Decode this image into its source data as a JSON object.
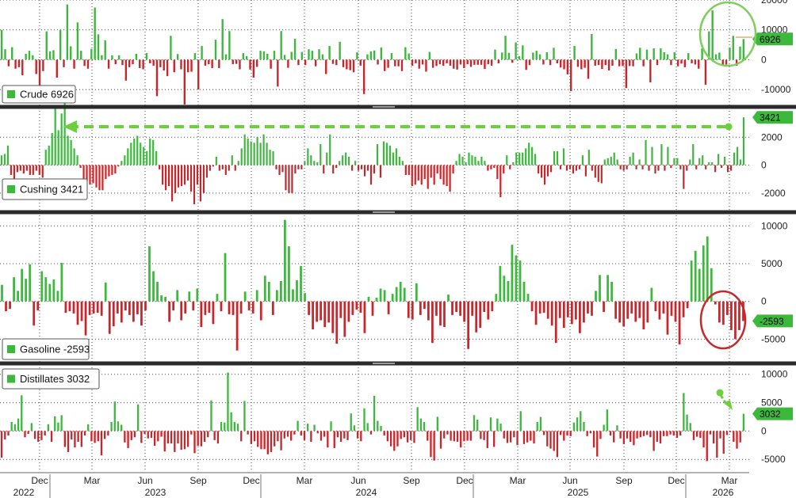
{
  "chart_data": [
    {
      "type": "bar",
      "legend": {
        "label": "Crude 6926",
        "color": "#3cb83c"
      },
      "last_value_label": "6926",
      "ylim": [
        -15000,
        20000
      ],
      "yticks": [
        20000,
        10000,
        0,
        -10000
      ],
      "ytick_labels": [
        "20000",
        "10000",
        "0",
        "-10000"
      ],
      "highlight": {
        "shape": "ellipse",
        "color": "#7ccf5a",
        "target": "last-bars"
      },
      "values": [
        10000,
        3500,
        -2200,
        4200,
        -3000,
        -2500,
        -5200,
        2000,
        3000,
        1500,
        -4800,
        -10500,
        -3800,
        9500,
        2800,
        3200,
        -6000,
        10000,
        -2500,
        18500,
        4500,
        -3000,
        12500,
        3000,
        -2100,
        -3000,
        3600,
        17500,
        8500,
        1500,
        6500,
        -3000,
        1500,
        -1500,
        1500,
        -1800,
        -7000,
        -2500,
        -1500,
        2000,
        -2800,
        -3200,
        2200,
        -1200,
        -2000,
        -12200,
        -2500,
        -3600,
        -5500,
        8000,
        -4200,
        1900,
        -3200,
        -15000,
        -4200,
        -4000,
        2200,
        -10000,
        4600,
        -2000,
        -1500,
        -2800,
        6700,
        -2800,
        13600,
        1800,
        9600,
        -1500,
        -1400,
        -3200,
        2200,
        1200,
        -3300,
        -6000,
        -2400,
        3000,
        2800,
        2000,
        -3000,
        3000,
        -9000,
        9600,
        1600,
        -2700,
        2600,
        7000,
        -1800,
        2600,
        -1800,
        3500,
        3000,
        -2200,
        3500,
        1800,
        -4800,
        4600,
        -1400,
        -1800,
        6000,
        -2500,
        -3200,
        -3500,
        -4200,
        2500,
        -2000,
        -11500,
        1800,
        2800,
        3100,
        -1600,
        4100,
        -3800,
        -2700,
        2200,
        -2200,
        -2200,
        -3800,
        4200,
        2100,
        -2000,
        -1200,
        -3000,
        -1600,
        -4000,
        2600,
        -2700,
        -2100,
        -1500,
        -2000,
        -1200,
        -2000,
        -3000,
        -3300,
        -1600,
        -2800,
        -1500,
        -2400,
        -1700,
        -1700,
        -1700,
        -3100,
        -1500,
        -2000,
        3400,
        -1200,
        2400,
        8000,
        2300,
        -1000,
        5800,
        1200,
        4800,
        -3400,
        -1800,
        2400,
        3000,
        1800,
        -1600,
        2500,
        -1800,
        4000,
        -1200,
        -2600,
        -3200,
        -4900,
        -10500,
        4600,
        -2400,
        -3200,
        -2700,
        -6400,
        8600,
        -2000,
        -1800,
        -3100,
        -1800,
        -3600,
        -2000,
        3600,
        -2200,
        -2100,
        -9500,
        -2100,
        -2200,
        2100,
        4000,
        -2200,
        3400,
        -7600,
        3800,
        -1800,
        3800,
        2500,
        1800,
        -1800,
        2500,
        -2200,
        -1300,
        -2500,
        2200,
        -1200,
        -1600,
        -3000,
        3800,
        -8400,
        9500,
        16500,
        1800,
        2400,
        -2100,
        -1600,
        4000,
        8000,
        -2000,
        4400,
        6926
      ]
    },
    {
      "type": "bar",
      "legend": {
        "label": "Cushing 3421",
        "color": "#3cb83c"
      },
      "last_value_label": "3421",
      "ylim": [
        -3200,
        4000
      ],
      "yticks": [
        2000,
        0,
        -2000
      ],
      "ytick_labels": [
        "2000",
        "0",
        "-2000"
      ],
      "highlight": {
        "shape": "dashed-arrow",
        "color": "#6ccf3c",
        "target": "last-bar-to-early-2023-peak"
      },
      "values": [
        700,
        800,
        1400,
        -700,
        -1100,
        -500,
        -400,
        -600,
        -400,
        -700,
        -700,
        -400,
        -700,
        -900,
        1100,
        1400,
        2300,
        4200,
        2500,
        3700,
        4600,
        2100,
        1800,
        1200,
        700,
        -200,
        -1300,
        -1200,
        -1400,
        -1300,
        -1600,
        -1800,
        -1800,
        -1000,
        -800,
        -700,
        -600,
        -100,
        300,
        700,
        1200,
        1600,
        1900,
        2100,
        1600,
        1300,
        1000,
        1900,
        1800,
        1000,
        -300,
        -1400,
        -1800,
        -1500,
        -2600,
        -2000,
        -1600,
        -1500,
        -1400,
        -1100,
        -1900,
        -2800,
        -1400,
        -2600,
        -2000,
        -900,
        -400,
        -100,
        600,
        -400,
        -300,
        -700,
        -400,
        700,
        -400,
        300,
        1200,
        2200,
        1900,
        1700,
        1600,
        2000,
        1600,
        2200,
        1600,
        1100,
        1000,
        -300,
        -700,
        -500,
        -1800,
        -2000,
        -2000,
        -600,
        -300,
        -300,
        300,
        1200,
        700,
        300,
        200,
        1500,
        -600,
        900,
        2200,
        -600,
        -200,
        300,
        700,
        900,
        600,
        -400,
        300,
        -400,
        -300,
        -800,
        -400,
        -1400,
        -600,
        1500,
        -900,
        1700,
        1600,
        1400,
        900,
        1200,
        600,
        300,
        -700,
        -700,
        -1500,
        -1400,
        -1100,
        -1400,
        -1000,
        -1700,
        -900,
        -1400,
        -600,
        -1000,
        -1400,
        -1500,
        -1900,
        -600,
        300,
        800,
        600,
        200,
        900,
        700,
        600,
        300,
        600,
        300,
        -400,
        -300,
        -200,
        -1000,
        -2300,
        -600,
        700,
        -300,
        200,
        900,
        900,
        900,
        1200,
        1600,
        1300,
        800,
        -600,
        -900,
        -1400,
        -800,
        -500,
        1000,
        1000,
        -300,
        1200,
        -400,
        -300,
        -600,
        -400,
        -300,
        700,
        -800,
        1100,
        -400,
        -900,
        -1200,
        -1300,
        400,
        500,
        600,
        900,
        400,
        -300,
        -400,
        -300,
        600,
        900,
        -300,
        400,
        -300,
        1800,
        -400,
        1300,
        -600,
        -400,
        1500,
        -400,
        1300,
        -200,
        500,
        500,
        -300,
        -1700,
        -400,
        400,
        1500,
        -300,
        500,
        700,
        -300,
        200,
        200,
        -500,
        800,
        -200,
        600,
        -500,
        -400,
        900,
        1300,
        400,
        3421
      ]
    },
    {
      "type": "bar",
      "legend": {
        "label": "Gasoline -2593",
        "color": "#3cb83c"
      },
      "last_value_label": "-2593",
      "ylim": [
        -8000,
        11500
      ],
      "yticks": [
        10000,
        5000,
        0,
        -5000
      ],
      "ytick_labels": [
        "10000",
        "5000",
        "0",
        "-5000"
      ],
      "highlight": {
        "shape": "ellipse",
        "color": "#c8262b",
        "target": "last-bars"
      },
      "values": [
        2200,
        -1300,
        -1000,
        3200,
        1400,
        4300,
        3000,
        4900,
        -3200,
        -1200,
        4000,
        3200,
        2300,
        2900,
        1400,
        5100,
        -1500,
        -1300,
        -1600,
        -3100,
        -2600,
        -4500,
        -1800,
        -1600,
        -1500,
        -1900,
        2500,
        -4300,
        -3300,
        -1600,
        -2800,
        -1200,
        -1800,
        -2700,
        -1700,
        -3200,
        -1200,
        7300,
        4000,
        2600,
        800,
        600,
        -2700,
        -1200,
        1500,
        -2500,
        -1600,
        1300,
        -1200,
        1700,
        -3400,
        -1800,
        -1500,
        -3000,
        1000,
        -1300,
        6400,
        -1700,
        -1800,
        -6500,
        -1600,
        1300,
        -1200,
        -1600,
        1500,
        -2500,
        3400,
        2600,
        -1800,
        1500,
        2700,
        10800,
        7300,
        1600,
        2800,
        4700,
        1100,
        -1800,
        -3700,
        -2700,
        -2500,
        -3400,
        -2800,
        -4200,
        -5600,
        -2200,
        -4700,
        -2700,
        -1800,
        -1100,
        -1500,
        -4200,
        600,
        -1900,
        500,
        1700,
        1500,
        -1700,
        1000,
        1900,
        2600,
        1800,
        -2200,
        -2400,
        2400,
        -1800,
        -1000,
        -2500,
        -5500,
        -1900,
        -3200,
        -3400,
        900,
        -1800,
        -1400,
        -1900,
        -2700,
        -6300,
        -1900,
        -4100,
        -3500,
        -1400,
        -2400,
        -1300,
        1000,
        4700,
        3400,
        2700,
        7500,
        6100,
        5400,
        2600,
        1000,
        -1300,
        -3100,
        -1600,
        -1500,
        -2300,
        -3200,
        -5500,
        -2200,
        -3500,
        -2100,
        -3000,
        -2400,
        -4200,
        -2800,
        -1600,
        -1900,
        1400,
        3500,
        -1400,
        3500,
        2600,
        -2300,
        -2800,
        -3300,
        -2300,
        -1600,
        -2700,
        -2200,
        -3700,
        -2800,
        1800,
        -1300,
        -2400,
        -1600,
        -4400,
        -1900,
        -2700,
        -5700,
        -2100,
        -900,
        5400,
        6700,
        4300,
        7400,
        8600,
        4400,
        -400,
        -2800,
        -3100,
        -1800,
        -3800,
        -5000,
        -3800,
        -2593
      ]
    },
    {
      "type": "bar",
      "legend": {
        "label": "Distillates 3032",
        "color": "#3cb83c"
      },
      "last_value_label": "3032",
      "ylim": [
        -7200,
        11500
      ],
      "yticks": [
        10000,
        5000,
        0,
        -5000
      ],
      "ytick_labels": [
        "10000",
        "5000",
        "0",
        "-5000"
      ],
      "highlight": {
        "shape": "arrow",
        "color": "#6ccf3c",
        "target": "last-bar"
      },
      "values": [
        -4700,
        -1500,
        -800,
        1600,
        1200,
        2200,
        6300,
        -1100,
        -500,
        1400,
        -1400,
        -1900,
        -1600,
        -800,
        1200,
        -1900,
        2600,
        1500,
        2800,
        -2800,
        -3700,
        -1500,
        -2900,
        -1900,
        -2800,
        -800,
        1200,
        -1800,
        -2100,
        -1800,
        -4300,
        -1400,
        -800,
        1600,
        5200,
        1700,
        1100,
        -2000,
        -3000,
        -1600,
        -1100,
        4700,
        -2100,
        -500,
        -1300,
        -1200,
        -2600,
        -1800,
        -1000,
        -3600,
        -2200,
        -2200,
        -3700,
        -2200,
        -3300,
        -3200,
        -2800,
        -600,
        -3900,
        -2600,
        -2700,
        -1900,
        -1100,
        5400,
        -1600,
        -2200,
        1600,
        1500,
        10300,
        3300,
        1600,
        1300,
        -1800,
        5300,
        -600,
        -2300,
        -1800,
        -2800,
        -3200,
        -3200,
        -4100,
        -3700,
        -2700,
        -1800,
        -3400,
        -1300,
        -1000,
        -1700,
        -600,
        1800,
        -800,
        -1600,
        1300,
        -1900,
        1100,
        -400,
        -1700,
        -1000,
        -2900,
        1700,
        -3000,
        -1100,
        -1900,
        -1300,
        -1600,
        3100,
        1000,
        -1300,
        -1800,
        4000,
        1400,
        -600,
        6200,
        1800,
        900,
        -800,
        -1800,
        -2700,
        -3500,
        -2700,
        -1400,
        -1100,
        -2000,
        -1600,
        -2100,
        4200,
        2200,
        1600,
        -1700,
        -4600,
        -5200,
        2500,
        -3100,
        -1300,
        -600,
        -1700,
        -1800,
        -1900,
        -2900,
        -1800,
        -1700,
        -1700,
        2800,
        2000,
        -1400,
        -1600,
        -3000,
        2400,
        -2800,
        2200,
        1300,
        -1300,
        -2100,
        -2000,
        -1100,
        -2500,
        3500,
        -2300,
        -2000,
        -1700,
        -2200,
        1600,
        2500,
        -700,
        -2700,
        -3100,
        -3500,
        -4600,
        -700,
        -1700,
        -800,
        -900,
        1500,
        2400,
        3500,
        1600,
        -900,
        -400,
        -2900,
        -4500,
        -1400,
        1100,
        3800,
        -800,
        -2000,
        1000,
        -1300,
        -2300,
        -1300,
        -1900,
        -2500,
        -1300,
        -1100,
        -900,
        -700,
        -1100,
        -3500,
        -1900,
        -2200,
        -900,
        -900,
        -600,
        -800,
        -1200,
        -800,
        6700,
        2900,
        1400,
        -1600,
        -1000,
        -1200,
        -2900,
        -5300,
        -600,
        -2200,
        -4700,
        -1300,
        -4000,
        -700,
        -200,
        -1900,
        -3100,
        -2000,
        3032
      ]
    }
  ],
  "xaxis": {
    "months": [
      "Dec",
      "Mar",
      "Jun",
      "Sep",
      "Dec",
      "Mar",
      "Jun",
      "Sep",
      "Dec",
      "Mar",
      "Jun",
      "Sep",
      "Dec",
      "Mar"
    ],
    "years": [
      "2022",
      "2023",
      "2024",
      "2025",
      "2026"
    ]
  },
  "colors": {
    "positive": "#3cb83c",
    "negative": "#c8262b",
    "grid": "#4a4a4a",
    "separator": "#2b2b2b"
  }
}
